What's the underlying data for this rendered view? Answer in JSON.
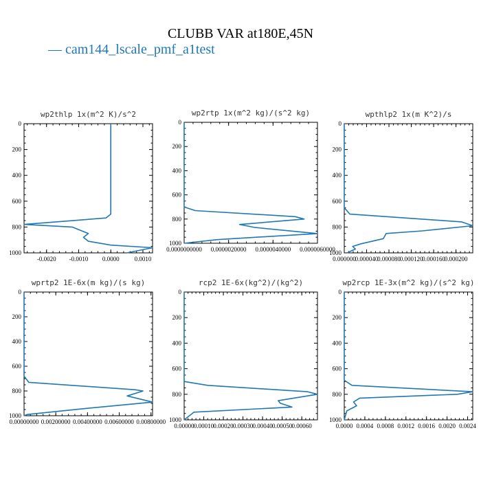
{
  "header": {
    "title": "CLUBB VAR at180E,45N",
    "legend_label": "cam144_lscale_pmf_a1test",
    "legend_color": "#1f77b4"
  },
  "chart_data": [
    {
      "type": "line",
      "title": "wp2thlp  1x(m^2 K)/s^2",
      "xlim": [
        -0.0027,
        0.0013
      ],
      "ylim": [
        1000,
        0
      ],
      "xticks": [
        -0.002,
        -0.001,
        0.0,
        0.001
      ],
      "xtick_labels": [
        "-0.0020",
        "-0.0010",
        "0.0000",
        "0.0010"
      ],
      "yticks": [
        0,
        200,
        400,
        600,
        800,
        1000
      ],
      "ytick_labels": [
        "0",
        "200",
        "400",
        "600",
        "800",
        "1000"
      ],
      "x": [
        0.0,
        0.0,
        0.0,
        -0.00015,
        -0.0027,
        -0.0012,
        -0.0007,
        -0.00085,
        -0.0007,
        0.0,
        0.0013,
        0.0005
      ],
      "y": [
        0,
        200,
        700,
        730,
        780,
        800,
        850,
        880,
        910,
        940,
        960,
        1000
      ]
    },
    {
      "type": "line",
      "title": "wp2rtp  1x(m^2 kg)/(s^2 kg)",
      "xlim": [
        0.0,
        6e-06
      ],
      "ylim": [
        1000,
        0
      ],
      "xticks": [
        0.0,
        2e-06,
        4e-06,
        6e-06
      ],
      "xtick_labels": [
        "0.0000000000",
        "0.0000020000",
        "0.0000040000",
        "0.0000060000"
      ],
      "yticks": [
        0,
        200,
        400,
        600,
        800,
        1000
      ],
      "ytick_labels": [
        "0",
        "200",
        "400",
        "600",
        "800",
        "1000"
      ],
      "x": [
        0.0,
        0.0,
        0.0,
        5e-07,
        5e-06,
        5.4e-06,
        2.5e-06,
        3.2e-06,
        6e-06,
        1.5e-06,
        0.0
      ],
      "y": [
        0,
        200,
        700,
        730,
        780,
        800,
        845,
        870,
        920,
        970,
        1000
      ]
    },
    {
      "type": "line",
      "title": "wpthlp2  1x(m K^2)/s",
      "xlim": [
        0.0,
        0.00023
      ],
      "ylim": [
        1000,
        0
      ],
      "xticks": [
        0.0,
        4e-05,
        8e-05,
        0.00012,
        0.00016,
        0.0002
      ],
      "xtick_labels": [
        "0.000000",
        "0.000040",
        "0.000080",
        "0.000120",
        "0.000160",
        "0.000200"
      ],
      "yticks": [
        0,
        200,
        400,
        600,
        800,
        1000
      ],
      "ytick_labels": [
        "0",
        "200",
        "400",
        "600",
        "800",
        "1000"
      ],
      "x": [
        0.0,
        0.0,
        0.0,
        1e-05,
        0.00021,
        0.00023,
        0.00014,
        7.5e-05,
        7e-05,
        3e-05,
        1.5e-05,
        2e-05,
        5e-06
      ],
      "y": [
        0,
        200,
        650,
        700,
        760,
        790,
        830,
        850,
        890,
        930,
        950,
        970,
        1000
      ]
    },
    {
      "type": "line",
      "title": "wprtp2  1E-6x(m kg)/(s kg)",
      "xlim": [
        0.0,
        0.0081
      ],
      "ylim": [
        1000,
        0
      ],
      "xticks": [
        0.0,
        0.002,
        0.004,
        0.006,
        0.008
      ],
      "xtick_labels": [
        "0.00000000",
        "0.00200000",
        "0.00400000",
        "0.00600000",
        "0.00800000"
      ],
      "yticks": [
        0,
        200,
        400,
        600,
        800,
        1000
      ],
      "ytick_labels": [
        "0",
        "200",
        "400",
        "600",
        "800",
        "1000"
      ],
      "x": [
        0.0,
        0.0,
        0.0,
        0.0003,
        0.007,
        0.0075,
        0.0065,
        0.0081,
        0.004,
        0.0002,
        0.0
      ],
      "y": [
        0,
        200,
        680,
        730,
        790,
        800,
        840,
        890,
        940,
        990,
        1000
      ]
    },
    {
      "type": "line",
      "title": "rcp2  1E-6x(kg^2)/(kg^2)",
      "xlim": [
        0.0,
        0.00068
      ],
      "ylim": [
        1000,
        0
      ],
      "xticks": [
        0.0,
        0.0001,
        0.0002,
        0.0003,
        0.0004,
        0.0005,
        0.0006
      ],
      "xtick_labels": [
        "0.00000",
        "0.00010",
        "0.00020",
        "0.00030",
        "0.00040",
        "0.00050",
        "0.00060"
      ],
      "yticks": [
        0,
        200,
        400,
        600,
        800,
        1000
      ],
      "ytick_labels": [
        "0",
        "200",
        "400",
        "600",
        "800",
        "1000"
      ],
      "x": [
        0.0,
        0.0,
        0.0,
        0.00012,
        0.00063,
        0.00068,
        0.00048,
        0.00049,
        0.00055,
        5e-05,
        0.0
      ],
      "y": [
        0,
        200,
        700,
        730,
        780,
        800,
        850,
        870,
        900,
        940,
        1000
      ]
    },
    {
      "type": "line",
      "title": "wp2rcp  1E-3x(m^2 kg)/(s^2 kg)",
      "xlim": [
        0.0,
        0.0025
      ],
      "ylim": [
        1000,
        0
      ],
      "xticks": [
        0.0,
        0.0004,
        0.0008,
        0.0012,
        0.0016,
        0.002,
        0.0024
      ],
      "xtick_labels": [
        "0.0000",
        "0.0004",
        "0.0008",
        "0.0012",
        "0.0016",
        "0.0020",
        "0.0024"
      ],
      "yticks": [
        0,
        200,
        400,
        600,
        800,
        1000
      ],
      "ytick_labels": [
        "0",
        "200",
        "400",
        "600",
        "800",
        "1000"
      ],
      "x": [
        0.0,
        0.0,
        0.0,
        0.00015,
        0.0025,
        0.0022,
        0.0003,
        0.00018,
        0.00024,
        5e-05,
        0.0
      ],
      "y": [
        0,
        200,
        690,
        730,
        780,
        800,
        830,
        860,
        890,
        930,
        1000
      ]
    }
  ]
}
